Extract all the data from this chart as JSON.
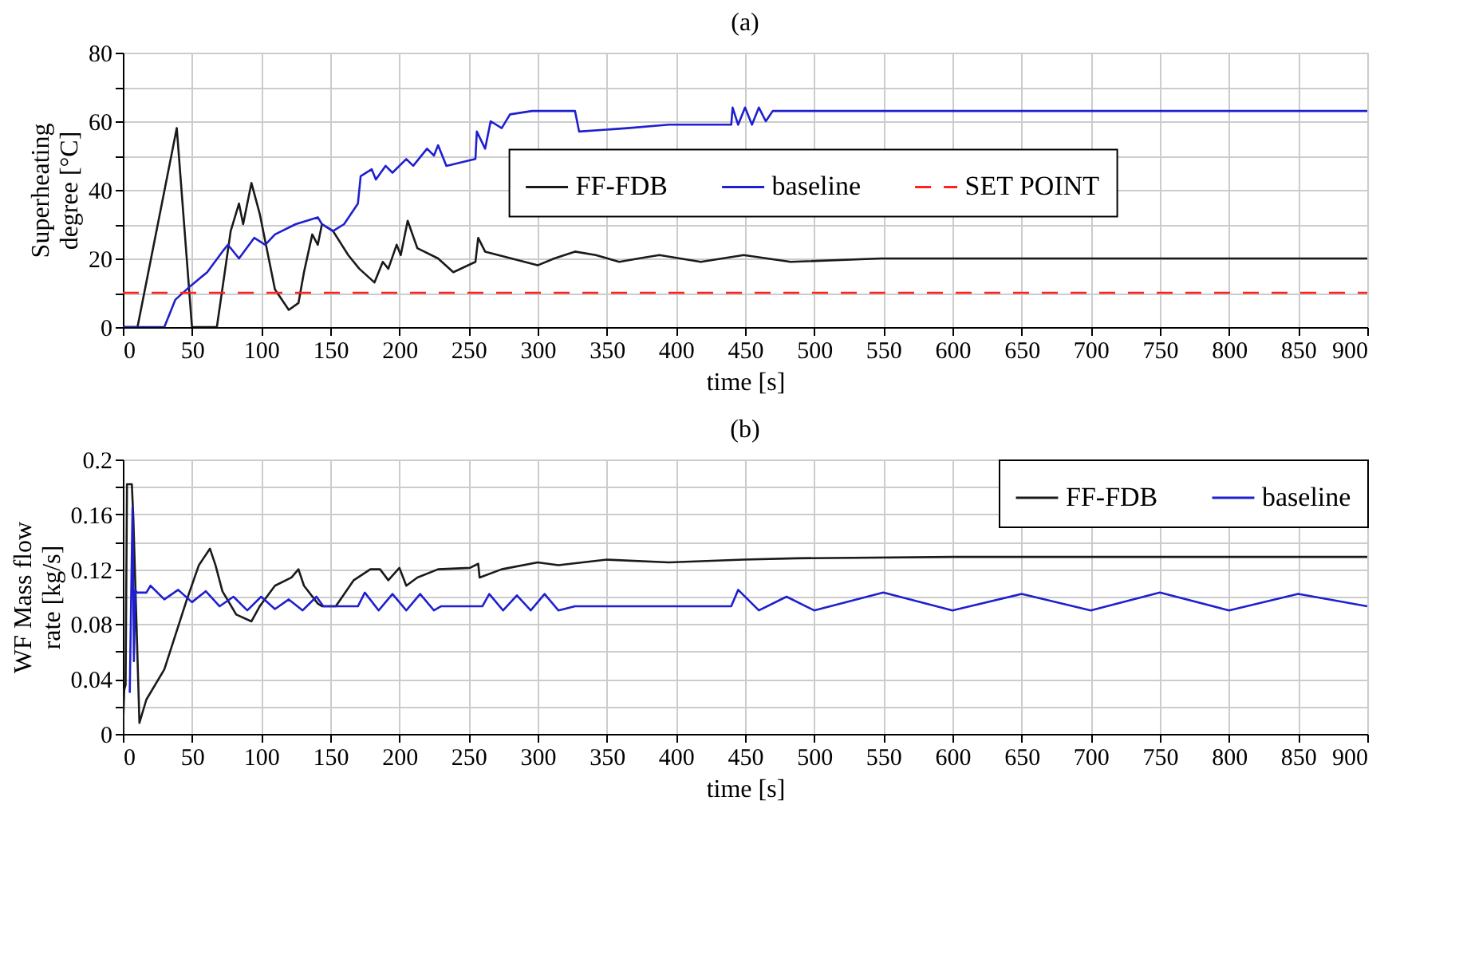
{
  "chart_data": [
    {
      "type": "line",
      "title": "(a)",
      "xlabel": "time [s]",
      "ylabel": "Superheating degree [°C]",
      "xlim": [
        0,
        900
      ],
      "xticks": [
        0,
        50,
        100,
        150,
        200,
        250,
        300,
        350,
        400,
        450,
        500,
        550,
        600,
        650,
        700,
        750,
        800,
        850,
        900
      ],
      "ylim": [
        0,
        80
      ],
      "yticks": [
        0,
        {
          "value": 10,
          "label": null
        },
        20,
        {
          "value": 30,
          "label": null
        },
        40,
        {
          "value": 50,
          "label": null
        },
        60,
        {
          "value": 70,
          "label": null
        },
        80
      ],
      "grid": true,
      "legend": "right",
      "line_style": "solid",
      "series": [
        {
          "name": "FF-FDB",
          "color": "#1a1a1a",
          "x": [
            0,
            10.6,
            39,
            50,
            68,
            78,
            84,
            87,
            93,
            99,
            110,
            120,
            127,
            131,
            137,
            141,
            144,
            152,
            163,
            171,
            182,
            188,
            192,
            198,
            201,
            206,
            213,
            228,
            239,
            255,
            257,
            262,
            281,
            300,
            312,
            327,
            342,
            359,
            373,
            388,
            418,
            449,
            483,
            548,
            639,
            700,
            800,
            900
          ],
          "values": [
            0,
            0,
            58,
            0,
            0,
            28,
            36,
            30,
            42,
            33,
            11,
            5,
            7,
            16,
            27,
            24,
            30,
            28,
            21,
            17,
            13,
            19,
            17,
            24,
            21,
            31,
            23,
            20,
            16,
            19,
            26,
            22,
            20,
            18,
            20,
            22,
            21,
            19,
            20,
            21,
            19,
            21,
            19,
            20,
            20,
            20,
            20,
            20
          ]
        },
        {
          "name": "baseline",
          "color": "#1f1fd0",
          "x": [
            0,
            30,
            38,
            49,
            61,
            72,
            76,
            84,
            95,
            103,
            110,
            125,
            141,
            144,
            152,
            160,
            170,
            172,
            180,
            183,
            190,
            195,
            205,
            210,
            220,
            225,
            228,
            234,
            255,
            256,
            262,
            266,
            274,
            280,
            296,
            327,
            330,
            365,
            395,
            440,
            441,
            445,
            450,
            455,
            460,
            465,
            470,
            500,
            550,
            600,
            650,
            700,
            750,
            800,
            850,
            900
          ],
          "values": [
            0,
            0,
            8,
            12,
            16,
            22,
            24,
            20,
            26,
            24,
            27,
            30,
            32,
            30,
            28,
            30,
            36,
            44,
            46,
            43,
            47,
            45,
            49,
            47,
            52,
            50,
            53,
            47,
            49,
            57,
            52,
            60,
            58,
            62,
            63,
            63,
            57,
            58,
            59,
            59,
            64,
            59,
            64,
            59,
            64,
            60,
            63,
            63,
            63,
            63,
            63,
            63,
            63,
            63,
            63,
            63
          ]
        }
      ],
      "ref_lines": [
        {
          "axis": "y",
          "value": 10,
          "label": "SET POINT",
          "color": "#ff2020",
          "line_style": "dashed"
        }
      ]
    },
    {
      "type": "line",
      "title": "(b)",
      "xlabel": "time [s]",
      "ylabel": "WF Mass flow rate [kg/s]",
      "xlim": [
        0,
        900
      ],
      "xticks": [
        0,
        50,
        100,
        150,
        200,
        250,
        300,
        350,
        400,
        450,
        500,
        550,
        600,
        650,
        700,
        750,
        800,
        850,
        900
      ],
      "ylim": [
        0,
        0.2
      ],
      "yticks": [
        0,
        {
          "value": 0.02,
          "label": null
        },
        0.04,
        {
          "value": 0.06,
          "label": null
        },
        0.08,
        {
          "value": 0.1,
          "label": null
        },
        0.12,
        {
          "value": 0.14,
          "label": null
        },
        0.16,
        {
          "value": 0.18,
          "label": null
        },
        0.2
      ],
      "grid": true,
      "legend": "top right",
      "line_style": "solid",
      "series": [
        {
          "name": "FF-FDB",
          "color": "#1a1a1a",
          "x": [
            0,
            1,
            2,
            3,
            6.5,
            7.6,
            12,
            17,
            30,
            46,
            55,
            63,
            67,
            72,
            82,
            93,
            99,
            110,
            122,
            127,
            131,
            141,
            144,
            154,
            167,
            179,
            186,
            192,
            200,
            205,
            213,
            228,
            251,
            257,
            258,
            274,
            300,
            315,
            350,
            395,
            449,
            487,
            601,
            900
          ],
          "values": [
            0,
            0.032,
            0.036,
            0.182,
            0.182,
            0.157,
            0.008,
            0.025,
            0.047,
            0.097,
            0.123,
            0.135,
            0.123,
            0.104,
            0.087,
            0.082,
            0.093,
            0.108,
            0.114,
            0.12,
            0.108,
            0.095,
            0.093,
            0.093,
            0.112,
            0.12,
            0.12,
            0.112,
            0.121,
            0.108,
            0.114,
            0.12,
            0.121,
            0.124,
            0.114,
            0.12,
            0.125,
            0.123,
            0.127,
            0.125,
            0.127,
            0.128,
            0.129,
            0.129
          ]
        },
        {
          "name": "baseline",
          "color": "#1f1fd0",
          "x": [
            5,
            7,
            8,
            9,
            10,
            17,
            20,
            30,
            40,
            50,
            60,
            70,
            80,
            90,
            100,
            110,
            120,
            130,
            140,
            145,
            150,
            170,
            175,
            185,
            195,
            205,
            215,
            225,
            230,
            260,
            265,
            275,
            285,
            295,
            305,
            315,
            327,
            440,
            445,
            460,
            480,
            500,
            550,
            600,
            650,
            700,
            750,
            800,
            850,
            900
          ],
          "values": [
            0.03,
            0.165,
            0.053,
            0.105,
            0.103,
            0.103,
            0.108,
            0.098,
            0.105,
            0.096,
            0.104,
            0.093,
            0.1,
            0.09,
            0.1,
            0.091,
            0.098,
            0.09,
            0.1,
            0.093,
            0.093,
            0.093,
            0.103,
            0.09,
            0.102,
            0.09,
            0.102,
            0.09,
            0.093,
            0.093,
            0.102,
            0.09,
            0.101,
            0.09,
            0.102,
            0.09,
            0.093,
            0.093,
            0.105,
            0.09,
            0.1,
            0.09,
            0.103,
            0.09,
            0.102,
            0.09,
            0.103,
            0.09,
            0.102,
            0.093
          ]
        }
      ]
    }
  ]
}
